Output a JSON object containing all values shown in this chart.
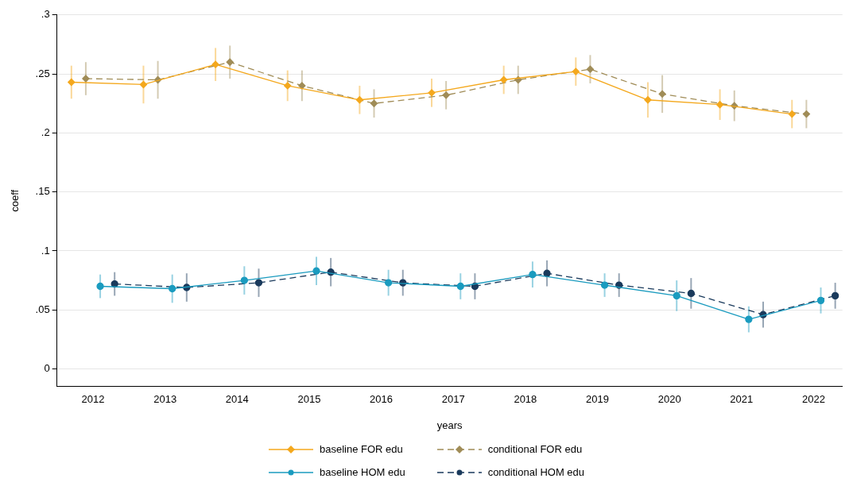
{
  "chart_data": {
    "type": "line",
    "xlabel": "years",
    "ylabel": "coeff",
    "xlim": [
      2011.5,
      2022.4
    ],
    "xticks": [
      2012,
      2013,
      2014,
      2015,
      2016,
      2017,
      2018,
      2019,
      2020,
      2021,
      2022
    ],
    "ylim": [
      -0.015,
      0.3
    ],
    "yticks": [
      {
        "value": 0,
        "label": "0"
      },
      {
        "value": 0.05,
        "label": ".05"
      },
      {
        "value": 0.1,
        "label": ".1"
      },
      {
        "value": 0.15,
        "label": ".15"
      },
      {
        "value": 0.2,
        "label": ".2"
      },
      {
        "value": 0.25,
        "label": ".25"
      },
      {
        "value": 0.3,
        "label": ".3"
      }
    ],
    "grid": "y",
    "legend": "bottom",
    "series": [
      {
        "name": "baseline FOR edu",
        "color": "#f4a81d",
        "marker": "diamond",
        "line_style": "solid",
        "x": [
          2011.7,
          2012.7,
          2013.7,
          2014.7,
          2015.7,
          2016.7,
          2017.7,
          2018.7,
          2019.7,
          2020.7,
          2021.7
        ],
        "values": [
          0.243,
          0.241,
          0.258,
          0.24,
          0.228,
          0.234,
          0.245,
          0.252,
          0.228,
          0.224,
          0.216
        ],
        "errors": [
          0.014,
          0.016,
          0.014,
          0.013,
          0.012,
          0.012,
          0.012,
          0.012,
          0.015,
          0.013,
          0.012
        ]
      },
      {
        "name": "conditional FOR edu",
        "color": "#a08c57",
        "marker": "diamond",
        "line_style": "dashed",
        "x": [
          2011.9,
          2012.9,
          2013.9,
          2014.9,
          2015.9,
          2016.9,
          2017.9,
          2018.9,
          2019.9,
          2020.9,
          2021.9
        ],
        "values": [
          0.246,
          0.245,
          0.26,
          0.24,
          0.225,
          0.232,
          0.245,
          0.254,
          0.233,
          0.223,
          0.216
        ],
        "errors": [
          0.014,
          0.016,
          0.014,
          0.013,
          0.012,
          0.012,
          0.012,
          0.012,
          0.016,
          0.013,
          0.012
        ]
      },
      {
        "name": "baseline HOM edu",
        "color": "#1a9bbf",
        "marker": "circle",
        "line_style": "solid",
        "x": [
          2012.1,
          2013.1,
          2014.1,
          2015.1,
          2016.1,
          2017.1,
          2018.1,
          2019.1,
          2020.1,
          2021.1,
          2022.1
        ],
        "values": [
          0.07,
          0.068,
          0.075,
          0.083,
          0.073,
          0.07,
          0.08,
          0.071,
          0.062,
          0.042,
          0.058
        ],
        "errors": [
          0.01,
          0.012,
          0.012,
          0.012,
          0.011,
          0.011,
          0.011,
          0.01,
          0.013,
          0.011,
          0.011
        ]
      },
      {
        "name": "conditional HOM edu",
        "color": "#1a3a5c",
        "marker": "circle",
        "line_style": "dashed",
        "x": [
          2012.3,
          2013.3,
          2014.3,
          2015.3,
          2016.3,
          2017.3,
          2018.3,
          2019.3,
          2020.3,
          2021.3,
          2022.3
        ],
        "values": [
          0.072,
          0.069,
          0.073,
          0.082,
          0.073,
          0.07,
          0.081,
          0.071,
          0.064,
          0.046,
          0.062
        ],
        "errors": [
          0.01,
          0.012,
          0.012,
          0.012,
          0.011,
          0.011,
          0.011,
          0.01,
          0.013,
          0.011,
          0.011
        ]
      }
    ]
  }
}
